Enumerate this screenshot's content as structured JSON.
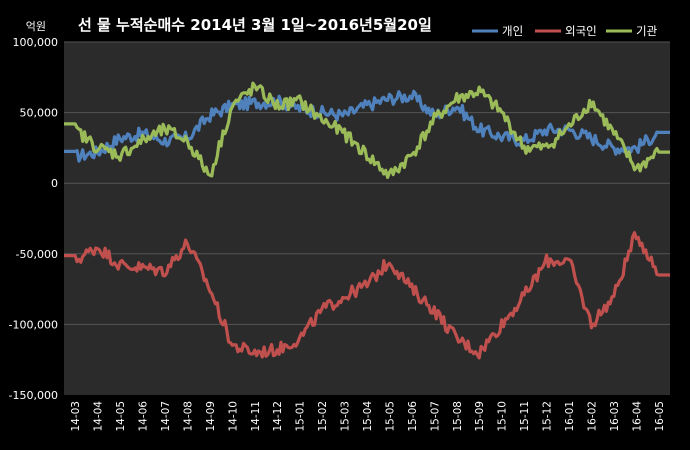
{
  "chart_data": {
    "type": "line",
    "title": "선 물 누적순매수 2014년 3월 1일~2016년5월20일",
    "unit_label": "억원",
    "xlabel": "",
    "ylabel": "",
    "ylim": [
      -150000,
      100000
    ],
    "y_ticks": [
      100000,
      50000,
      0,
      -50000,
      -100000,
      -150000
    ],
    "y_tick_labels": [
      "100,000",
      "50,000",
      "0",
      "-50,000",
      "-100,000",
      "-150,000"
    ],
    "categories": [
      "14-03",
      "14-04",
      "14-05",
      "14-06",
      "14-07",
      "14-08",
      "14-09",
      "14-10",
      "14-11",
      "14-12",
      "15-01",
      "15-02",
      "15-03",
      "15-04",
      "15-05",
      "15-06",
      "15-07",
      "15-08",
      "15-09",
      "15-10",
      "15-11",
      "15-12",
      "16-01",
      "16-02",
      "16-03",
      "16-04",
      "16-05"
    ],
    "grid": true,
    "legend_position": "top-right",
    "series": [
      {
        "name": "개인",
        "color": "#4f81bd",
        "values": [
          19000,
          22000,
          32000,
          35000,
          30000,
          32000,
          48000,
          55000,
          57000,
          58000,
          53000,
          50000,
          48000,
          55000,
          60000,
          62000,
          48000,
          55000,
          38000,
          33000,
          30000,
          38000,
          38000,
          32000,
          25000,
          25000,
          36000
        ]
      },
      {
        "name": "외국인",
        "color": "#c0504d",
        "values": [
          -55000,
          -45000,
          -58000,
          -60000,
          -62000,
          -42000,
          -75000,
          -115000,
          -120000,
          -118000,
          -110000,
          -90000,
          -80000,
          -72000,
          -55000,
          -75000,
          -90000,
          -110000,
          -120000,
          -100000,
          -80000,
          -55000,
          -55000,
          -100000,
          -80000,
          -35000,
          -65000
        ]
      },
      {
        "name": "기관",
        "color": "#9bbb59",
        "values": [
          38000,
          25000,
          20000,
          30000,
          38000,
          30000,
          5000,
          55000,
          68000,
          55000,
          58000,
          45000,
          35000,
          20000,
          5000,
          20000,
          45000,
          60000,
          65000,
          50000,
          25000,
          25000,
          40000,
          58000,
          35000,
          10000,
          22000
        ]
      }
    ]
  }
}
